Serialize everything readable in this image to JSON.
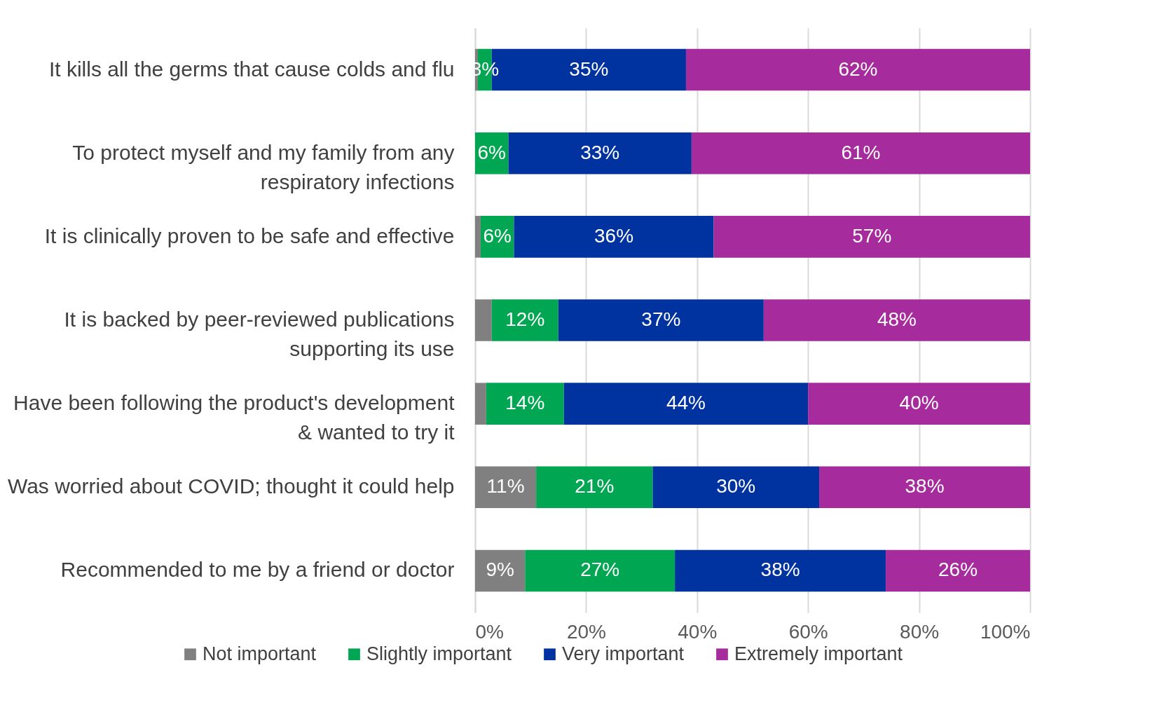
{
  "chart_data": {
    "type": "bar",
    "orientation": "horizontal",
    "stacked": true,
    "categories": [
      "It kills all the germs that cause colds and flu",
      "To protect myself and my family from any respiratory infections",
      "It is clinically proven to be safe and effective",
      "It is backed by peer-reviewed publications supporting its use",
      "Have been following the product's development & wanted to try it",
      "Was worried about COVID; thought it could help",
      "Recommended to me by a friend or doctor"
    ],
    "series": [
      {
        "name": "Not important",
        "color": "#808080",
        "values": [
          0.5,
          0,
          1,
          3,
          2,
          11,
          9
        ],
        "value_labels": [
          null,
          null,
          null,
          null,
          null,
          "11%",
          "9%"
        ]
      },
      {
        "name": "Slightly important",
        "color": "#00a651",
        "values": [
          2.5,
          6,
          6,
          12,
          14,
          21,
          27
        ],
        "value_labels": [
          "3%",
          "6%",
          "6%",
          "12%",
          "14%",
          "21%",
          "27%"
        ]
      },
      {
        "name": "Very important",
        "color": "#0033a0",
        "values": [
          35,
          33,
          36,
          37,
          44,
          30,
          38
        ],
        "value_labels": [
          "35%",
          "33%",
          "36%",
          "37%",
          "44%",
          "30%",
          "38%"
        ]
      },
      {
        "name": "Extremely important",
        "color": "#a62b9c",
        "values": [
          62,
          61,
          57,
          48,
          40,
          38,
          26
        ],
        "value_labels": [
          "62%",
          "61%",
          "57%",
          "48%",
          "40%",
          "38%",
          "26%"
        ]
      }
    ],
    "xlim": [
      0,
      100
    ],
    "xticks": [
      {
        "value": 0,
        "label": "0%"
      },
      {
        "value": 20,
        "label": "20%"
      },
      {
        "value": 40,
        "label": "40%"
      },
      {
        "value": 60,
        "label": "60%"
      },
      {
        "value": 80,
        "label": "80%"
      },
      {
        "value": 100,
        "label": "100%"
      }
    ],
    "grid": "x",
    "legend": "bottom"
  }
}
